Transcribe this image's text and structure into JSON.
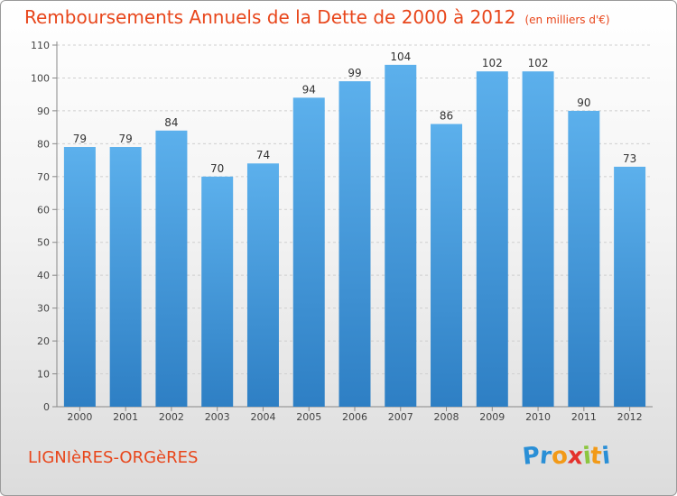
{
  "title": "Remboursements Annuels de la Dette de 2000 à 2012",
  "title_unit": "(en milliers d'€)",
  "place": "LIGNIèRES-ORGèRES",
  "logo": {
    "letters": [
      "P",
      "r",
      "o",
      "x",
      "i",
      "t",
      "i"
    ],
    "colors": [
      "#2a8fd6",
      "#2a8fd6",
      "#f29a18",
      "#e4312c",
      "#8cc63f",
      "#f29a18",
      "#2a8fd6"
    ]
  },
  "colors": {
    "bar": "#4a9fe0",
    "accent": "#e8461b"
  },
  "chart_data": {
    "type": "bar",
    "categories": [
      "2000",
      "2001",
      "2002",
      "2003",
      "2004",
      "2005",
      "2006",
      "2007",
      "2008",
      "2009",
      "2010",
      "2011",
      "2012"
    ],
    "values": [
      79,
      79,
      84,
      70,
      74,
      94,
      99,
      104,
      86,
      102,
      102,
      90,
      73
    ],
    "ylim": [
      0,
      110
    ],
    "yticks": [
      0,
      10,
      20,
      30,
      40,
      50,
      60,
      70,
      80,
      90,
      100,
      110
    ],
    "grid": true,
    "data_labels": true
  }
}
